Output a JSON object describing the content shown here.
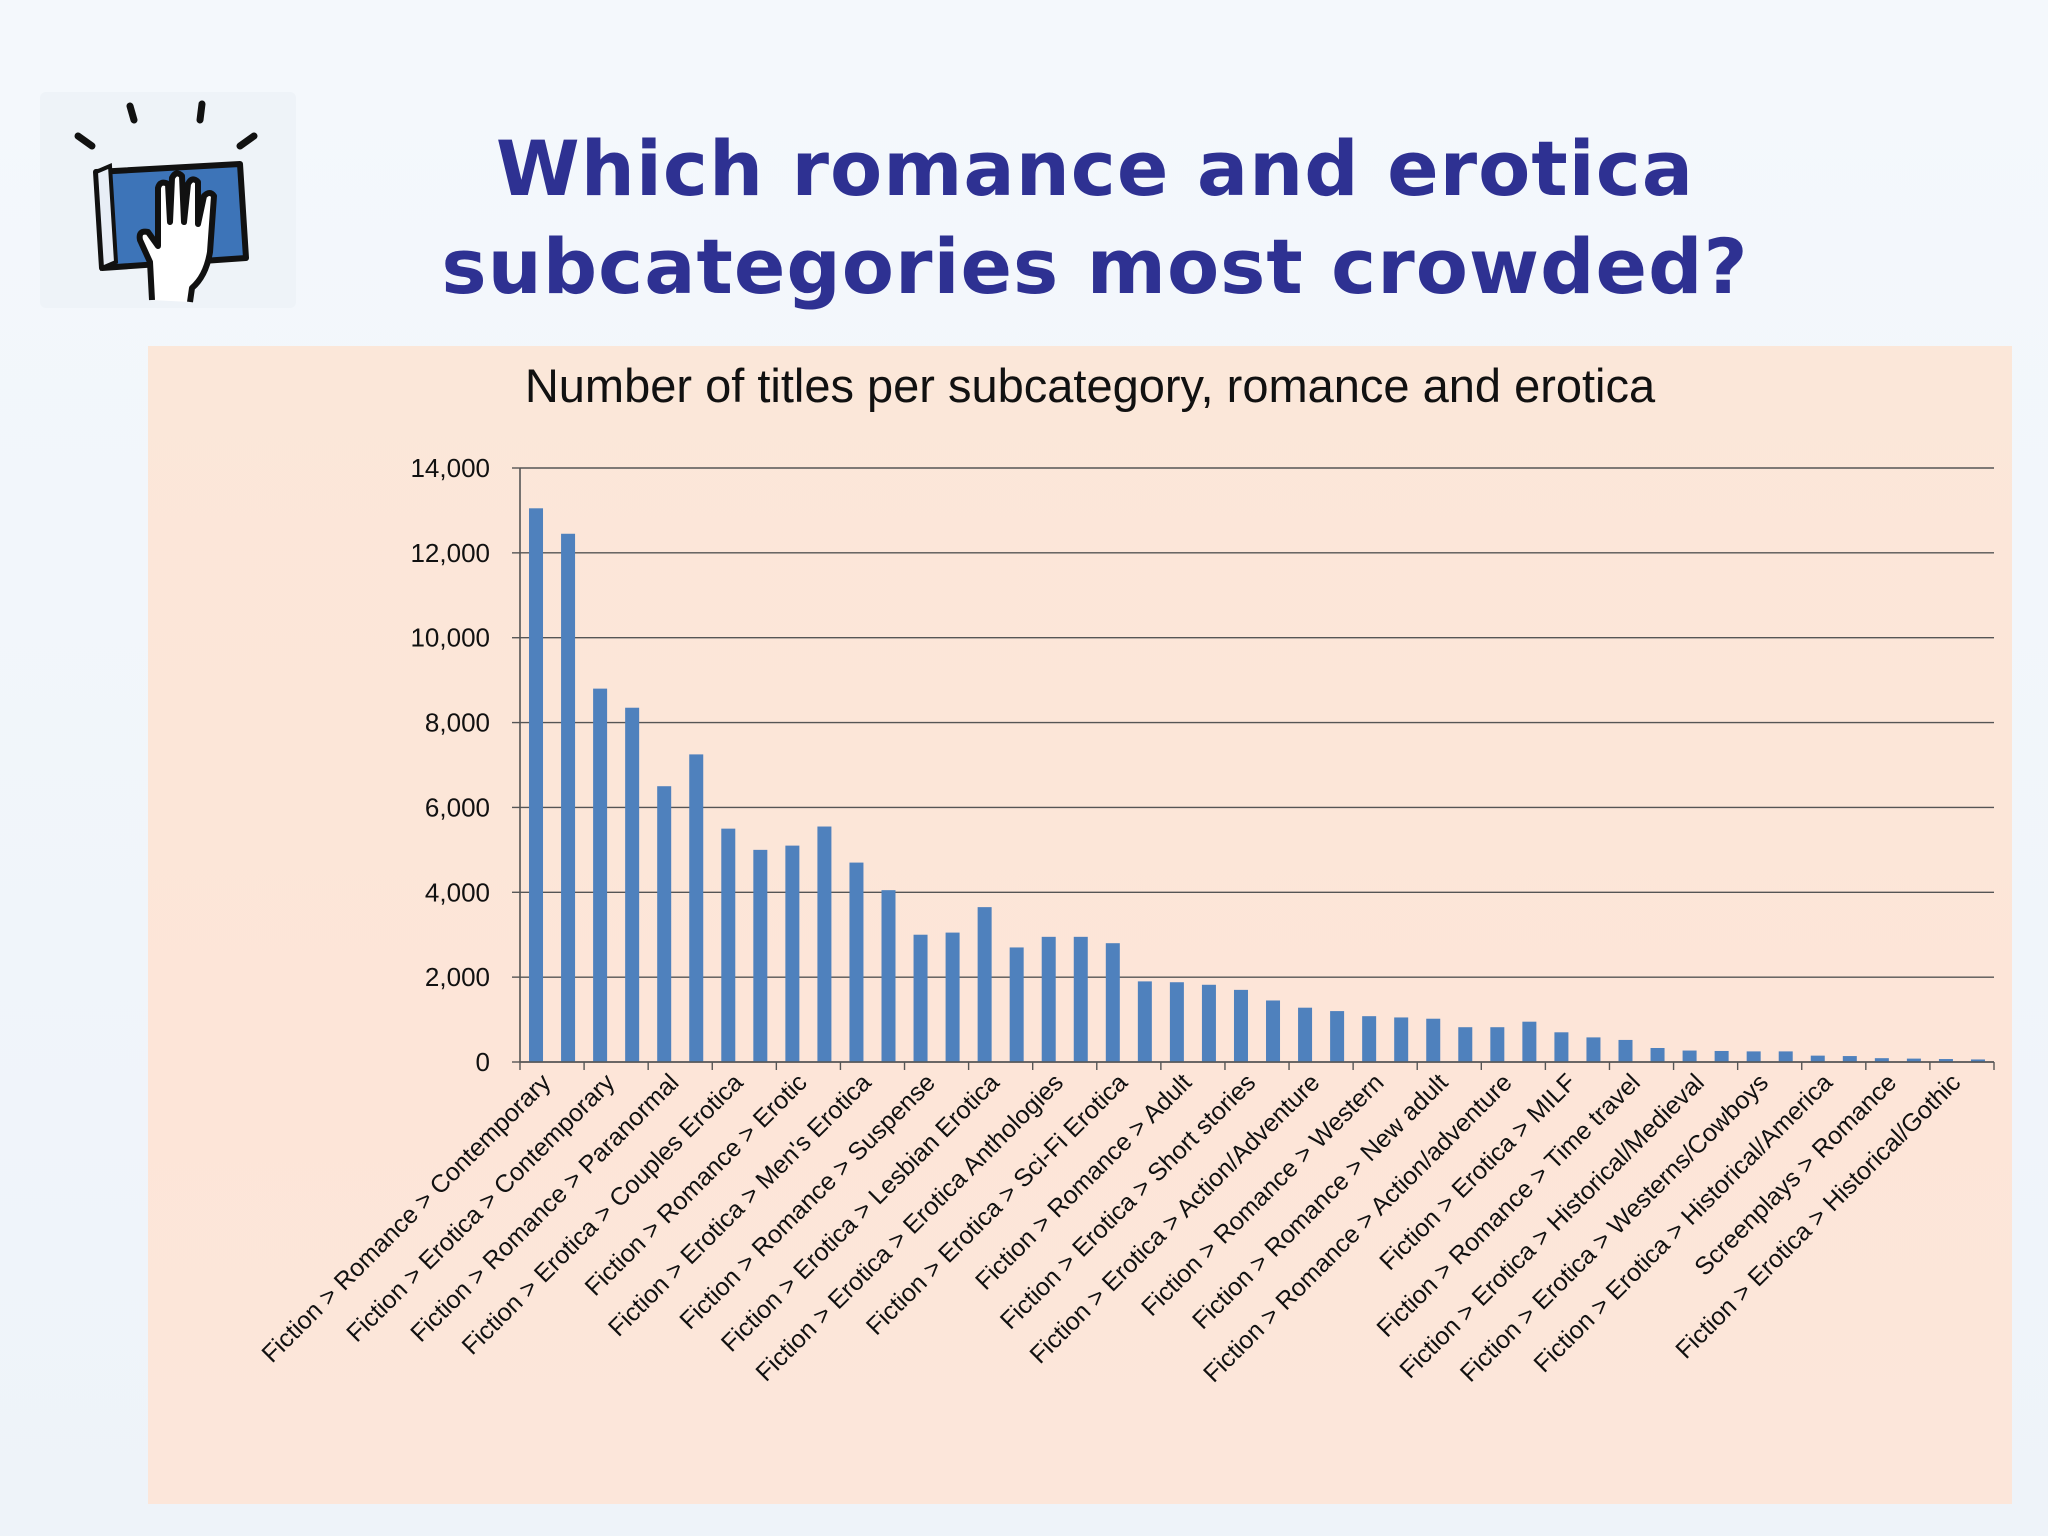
{
  "slide": {
    "title_line1": "Which romance and erotica",
    "title_line2": "subcategories most crowded?",
    "logo_icon": "hand-on-book-icon"
  },
  "colors": {
    "title": "#2e3192",
    "bar": "#4f81bd",
    "panel": "#fce6da",
    "grid": "#555555"
  },
  "chart_data": {
    "type": "bar",
    "title": "Number of titles per subcategory, romance and erotica",
    "xlabel": "",
    "ylabel": "",
    "ylim": [
      0,
      14000
    ],
    "yticks": [
      0,
      2000,
      4000,
      6000,
      8000,
      10000,
      12000,
      14000
    ],
    "ytick_labels": [
      "0",
      "2,000",
      "4,000",
      "6,000",
      "8,000",
      "10,000",
      "12,000",
      "14,000"
    ],
    "grid": true,
    "legend": "none",
    "values": [
      13050,
      12450,
      8800,
      8350,
      6500,
      7250,
      5500,
      5000,
      5100,
      5550,
      4700,
      4050,
      3000,
      3050,
      3650,
      2700,
      2950,
      2950,
      2800,
      1900,
      1880,
      1820,
      1700,
      1450,
      1280,
      1200,
      1080,
      1050,
      1020,
      820,
      820,
      950,
      700,
      580,
      520,
      330,
      270,
      260,
      250,
      250,
      150,
      140,
      90,
      80,
      70,
      60
    ],
    "labeled_indices": [
      0,
      2,
      4,
      6,
      8,
      10,
      12,
      14,
      16,
      18,
      20,
      22,
      24,
      26,
      28,
      30,
      32,
      34,
      36,
      38,
      40,
      42,
      44
    ],
    "categories": [
      "Fiction > Romance > Contemporary",
      "",
      "Fiction > Erotica > Contemporary",
      "",
      "Fiction > Romance > Paranormal",
      "",
      "Fiction > Erotica > Couples Erotica",
      "",
      "Fiction > Romance > Erotic",
      "",
      "Fiction > Erotica > Men's Erotica",
      "",
      "Fiction > Romance > Suspense",
      "",
      "Fiction > Erotica > Lesbian Erotica",
      "",
      "Fiction > Erotica > Erotica Anthologies",
      "",
      "Fiction > Erotica > Sci-Fi Erotica",
      "",
      "Fiction > Romance > Adult",
      "",
      "Fiction > Erotica > Short stories",
      "",
      "Fiction > Erotica > Action/Adventure",
      "",
      "Fiction > Romance > Western",
      "",
      "Fiction > Romance > New adult",
      "",
      "Fiction > Romance > Action/adventure",
      "",
      "Fiction > Erotica > MILF",
      "",
      "Fiction > Romance > Time travel",
      "",
      "Fiction > Erotica > Historical/Medieval",
      "",
      "Fiction > Erotica > Westerns/Cowboys",
      "",
      "Fiction > Erotica > Historical/America",
      "",
      "Screenplays > Romance",
      "",
      "Fiction > Erotica > Historical/Gothic",
      ""
    ]
  }
}
